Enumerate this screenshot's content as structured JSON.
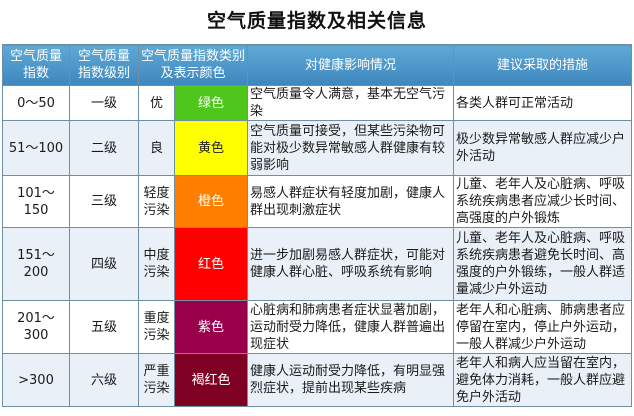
{
  "title": "空气质量指数及相关信息",
  "headers": [
    "空气质量指数",
    "空气质量指数级别",
    "空气质量指数类别及表示颜色",
    "对健康影响情况",
    "建议采取的措施"
  ],
  "rows": [
    {
      "index": "0～50",
      "level": "一级",
      "category": "优",
      "color_name": "绿色",
      "color": "#4fc61b",
      "text_color": "#ffffff",
      "health": "空气质量令人满意，基本无空气污染",
      "advice": "各类人群可正常活动"
    },
    {
      "index": "51～100",
      "level": "二级",
      "category": "良",
      "color_name": "黄色",
      "color": "#ffff00",
      "text_color": "#222222",
      "health": "空气质量可接受，但某些污染物可能对极少数异常敏感人群健康有较弱影响",
      "advice": "极少数异常敏感人群应减少户外活动"
    },
    {
      "index": "101～150",
      "level": "三级",
      "category": "轻度污染",
      "color_name": "橙色",
      "color": "#ff7e00",
      "text_color": "#ffffff",
      "health": "易感人群症状有轻度加剧，健康人群出现刺激症状",
      "advice": "儿童、老年人及心脏病、呼吸系统疾病患者应减少长时间、高强度的户外锻炼"
    },
    {
      "index": "151～200",
      "level": "四级",
      "category": "中度污染",
      "color_name": "红色",
      "color": "#ff0000",
      "text_color": "#ffffff",
      "health": "进一步加剧易感人群症状，可能对健康人群心脏、呼吸系统有影响",
      "advice": "儿童、老年人及心脏病、呼吸系统疾病患者避免长时间、高强度的户外锻练，一般人群适量减少户外运动"
    },
    {
      "index": "201～300",
      "level": "五级",
      "category": "重度污染",
      "color_name": "紫色",
      "color": "#99004c",
      "text_color": "#ffffff",
      "health": "心脏病和肺病患者症状显著加剧，运动耐受力降低，健康人群普遍出现症状",
      "advice": "老年人和心脏病、肺病患者应停留在室内，停止户外运动，一般人群减少户外运动"
    },
    {
      "index": ">300",
      "level": "六级",
      "category": "严重污染",
      "color_name": "褐红色",
      "color": "#7e0023",
      "text_color": "#ffffff",
      "health": "健康人运动耐受力降低，有明显强烈症状，提前出现某些疾病",
      "advice": "老年人和病人应当留在室内，避免体力消耗，一般人群应避免户外活动"
    }
  ]
}
